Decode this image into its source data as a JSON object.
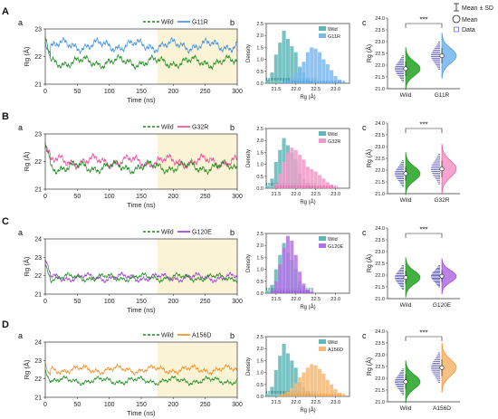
{
  "figure": {
    "global_legend": {
      "range_label": "Mean ± SD",
      "mean_label": "Mean",
      "data_label": "Data"
    },
    "colors": {
      "wild": "#1a8a1a",
      "teal": "#5fb8b8",
      "shade": "#fbf3d6",
      "axis": "#333333"
    },
    "rows": [
      {
        "letter": "A",
        "mutant": "G11R",
        "mutant_color": "#3e8ee0",
        "mutant_fill": "#7ab8f0",
        "ts_mean_wild": 21.8,
        "ts_mean_mut": 22.4,
        "ts_phase_shift": 0.2
      },
      {
        "letter": "B",
        "mutant": "G32R",
        "mutant_color": "#e8489a",
        "mutant_fill": "#f39ac8",
        "ts_mean_wild": 21.8,
        "ts_mean_mut": 22.0,
        "ts_phase_shift": 1.1
      },
      {
        "letter": "C",
        "mutant": "G120E",
        "mutant_color": "#9a3ad0",
        "mutant_fill": "#b474e6",
        "ts_mean_wild": 21.9,
        "ts_mean_mut": 21.9,
        "ts_phase_shift": 2.4
      },
      {
        "letter": "D",
        "mutant": "A156D",
        "mutant_color": "#f08a1c",
        "mutant_fill": "#f7b874",
        "ts_mean_wild": 21.9,
        "ts_mean_mut": 22.5,
        "ts_phase_shift": 3.3
      }
    ]
  },
  "chart_data": [
    {
      "type": "line",
      "panel": "a",
      "row": "A",
      "xlabel": "Time (ns)",
      "ylabel": "Rg (Å)",
      "xlim": [
        0,
        300
      ],
      "ylim": [
        21,
        23
      ],
      "x_ticks": [
        0,
        50,
        100,
        150,
        200,
        250,
        300
      ],
      "y_ticks": [
        21,
        22,
        23
      ],
      "shaded_region": [
        175,
        300
      ],
      "series": [
        {
          "name": "Wild",
          "style": "dashed-legend",
          "mean": 21.8
        },
        {
          "name": "G11R",
          "mean": 22.4
        }
      ]
    },
    {
      "type": "bar",
      "panel": "b",
      "row": "A",
      "xlabel": "Rg (Å)",
      "ylabel": "Density",
      "ylim": [
        0,
        2.5
      ],
      "x_ticks": [
        21.5,
        22.0,
        22.5,
        23.0
      ],
      "y_ticks": [
        0.0,
        0.5,
        1.0,
        1.5,
        2.0,
        2.5
      ],
      "categories": [
        21.3,
        21.4,
        21.5,
        21.6,
        21.7,
        21.8,
        21.9,
        22.0,
        22.1,
        22.2,
        22.3,
        22.4,
        22.5,
        22.6,
        22.7,
        22.8,
        22.9,
        23.0,
        23.1,
        23.2
      ],
      "series": [
        {
          "name": "Wild",
          "values": [
            0.15,
            0.45,
            1.2,
            1.7,
            2.2,
            1.85,
            1.55,
            1.3,
            0.65,
            0.45,
            0.2,
            0.1,
            0.05,
            0,
            0,
            0,
            0,
            0,
            0,
            0
          ]
        },
        {
          "name": "G11R",
          "values": [
            0,
            0,
            0,
            0,
            0.05,
            0.1,
            0.25,
            0.45,
            0.7,
            0.9,
            1.3,
            1.5,
            1.45,
            1.3,
            1.0,
            0.8,
            0.55,
            0.3,
            0.15,
            0.05
          ]
        }
      ]
    },
    {
      "type": "scatter",
      "panel": "c",
      "row": "A",
      "ylabel": "Rg (Å)",
      "ylim": [
        21.0,
        24.0
      ],
      "y_ticks": [
        21.0,
        21.5,
        22.0,
        22.5,
        23.0,
        23.5,
        24.0
      ],
      "categories": [
        "Wild",
        "G11R"
      ],
      "means": [
        21.85,
        22.4
      ],
      "sd": [
        0.3,
        0.32
      ],
      "significance": "***"
    },
    {
      "type": "line",
      "panel": "a",
      "row": "B",
      "xlabel": "Time (ns)",
      "ylabel": "Rg (Å)",
      "xlim": [
        0,
        300
      ],
      "ylim": [
        21,
        23
      ],
      "x_ticks": [
        0,
        50,
        100,
        150,
        200,
        250,
        300
      ],
      "y_ticks": [
        21,
        22,
        23
      ],
      "shaded_region": [
        175,
        300
      ],
      "series": [
        {
          "name": "Wild",
          "mean": 21.8
        },
        {
          "name": "G32R",
          "mean": 22.0
        }
      ]
    },
    {
      "type": "bar",
      "panel": "b",
      "row": "B",
      "xlabel": "Rg (Å)",
      "ylabel": "Density",
      "ylim": [
        0,
        2.5
      ],
      "x_ticks": [
        21.5,
        22.0,
        22.5,
        23.0
      ],
      "y_ticks": [
        0.0,
        0.5,
        1.0,
        1.5,
        2.0,
        2.5
      ],
      "categories": [
        21.3,
        21.4,
        21.5,
        21.6,
        21.7,
        21.8,
        21.9,
        22.0,
        22.1,
        22.2,
        22.3,
        22.4,
        22.5,
        22.6,
        22.7,
        22.8,
        22.9,
        23.0,
        23.1,
        23.2
      ],
      "series": [
        {
          "name": "Wild",
          "values": [
            0.1,
            0.4,
            1.1,
            1.6,
            2.1,
            1.8,
            1.5,
            1.2,
            0.6,
            0.4,
            0.2,
            0.1,
            0.05,
            0,
            0,
            0,
            0,
            0,
            0,
            0
          ]
        },
        {
          "name": "G32R",
          "values": [
            0,
            0,
            0.2,
            0.6,
            1.1,
            1.5,
            1.7,
            1.6,
            1.4,
            1.2,
            0.9,
            0.8,
            0.7,
            0.55,
            0.4,
            0.25,
            0.15,
            0.05,
            0,
            0
          ]
        }
      ]
    },
    {
      "type": "scatter",
      "panel": "c",
      "row": "B",
      "ylabel": "Rg (Å)",
      "ylim": [
        21.0,
        24.0
      ],
      "y_ticks": [
        21.0,
        21.5,
        22.0,
        22.5,
        23.0,
        23.5,
        24.0
      ],
      "categories": [
        "Wild",
        "G32R"
      ],
      "means": [
        21.85,
        22.05
      ],
      "sd": [
        0.3,
        0.35
      ],
      "significance": "***"
    },
    {
      "type": "line",
      "panel": "a",
      "row": "C",
      "xlabel": "Time (ns)",
      "ylabel": "Rg (Å)",
      "xlim": [
        0,
        300
      ],
      "ylim": [
        21,
        24
      ],
      "x_ticks": [
        0,
        50,
        100,
        150,
        200,
        250,
        300
      ],
      "y_ticks": [
        21,
        22,
        23,
        24
      ],
      "shaded_region": [
        175,
        300
      ],
      "series": [
        {
          "name": "Wild",
          "mean": 21.9
        },
        {
          "name": "G120E",
          "mean": 21.9
        }
      ]
    },
    {
      "type": "bar",
      "panel": "b",
      "row": "C",
      "xlabel": "Rg (Å)",
      "ylabel": "Density",
      "ylim": [
        0,
        2.5
      ],
      "x_ticks": [
        21.5,
        22.0,
        22.5,
        23.0
      ],
      "y_ticks": [
        0.0,
        0.5,
        1.0,
        1.5,
        2.0,
        2.5
      ],
      "categories": [
        21.3,
        21.4,
        21.5,
        21.6,
        21.7,
        21.8,
        21.9,
        22.0,
        22.1,
        22.2,
        22.3,
        22.4,
        22.5,
        22.6,
        22.7,
        22.8,
        22.9,
        23.0,
        23.1,
        23.2
      ],
      "series": [
        {
          "name": "Wild",
          "values": [
            0.1,
            0.35,
            1.0,
            1.6,
            2.1,
            1.7,
            1.4,
            1.0,
            0.5,
            0.3,
            0.15,
            0.05,
            0,
            0,
            0,
            0,
            0,
            0,
            0,
            0
          ]
        },
        {
          "name": "G120E",
          "values": [
            0,
            0.1,
            0.5,
            1.2,
            1.9,
            2.4,
            2.2,
            1.6,
            0.9,
            0.4,
            0.15,
            0.05,
            0,
            0,
            0,
            0,
            0,
            0,
            0,
            0
          ]
        }
      ]
    },
    {
      "type": "scatter",
      "panel": "c",
      "row": "C",
      "ylabel": "Rg (Å)",
      "ylim": [
        21.0,
        24.0
      ],
      "y_ticks": [
        21.0,
        21.5,
        22.0,
        22.5,
        23.0,
        23.5,
        24.0
      ],
      "categories": [
        "Wild",
        "G120E"
      ],
      "means": [
        21.9,
        21.95
      ],
      "sd": [
        0.28,
        0.25
      ],
      "significance": "***"
    },
    {
      "type": "line",
      "panel": "a",
      "row": "D",
      "xlabel": "Time (ns)",
      "ylabel": "Rg (Å)",
      "xlim": [
        0,
        300
      ],
      "ylim": [
        21,
        24
      ],
      "x_ticks": [
        0,
        50,
        100,
        150,
        200,
        250,
        300
      ],
      "y_ticks": [
        21,
        22,
        23,
        24
      ],
      "shaded_region": [
        175,
        300
      ],
      "series": [
        {
          "name": "Wild",
          "mean": 21.9
        },
        {
          "name": "A156D",
          "mean": 22.5
        }
      ]
    },
    {
      "type": "bar",
      "panel": "b",
      "row": "D",
      "xlabel": "Rg (Å)",
      "ylabel": "Density",
      "ylim": [
        0,
        2.5
      ],
      "x_ticks": [
        21.5,
        22.0,
        22.5,
        23.0
      ],
      "y_ticks": [
        0.0,
        0.5,
        1.0,
        1.5,
        2.0,
        2.5
      ],
      "categories": [
        21.3,
        21.4,
        21.5,
        21.6,
        21.7,
        21.8,
        21.9,
        22.0,
        22.1,
        22.2,
        22.3,
        22.4,
        22.5,
        22.6,
        22.7,
        22.8,
        22.9,
        23.0,
        23.1,
        23.2
      ],
      "series": [
        {
          "name": "Wild",
          "values": [
            0.1,
            0.4,
            1.1,
            1.7,
            2.2,
            1.8,
            1.5,
            1.2,
            0.6,
            0.4,
            0.2,
            0.1,
            0.05,
            0,
            0,
            0,
            0,
            0,
            0,
            0
          ]
        },
        {
          "name": "A156D",
          "values": [
            0,
            0,
            0,
            0.05,
            0.1,
            0.2,
            0.35,
            0.55,
            0.8,
            1.0,
            1.2,
            1.35,
            1.3,
            1.15,
            0.95,
            0.7,
            0.5,
            0.3,
            0.15,
            0.05
          ]
        }
      ]
    },
    {
      "type": "scatter",
      "panel": "c",
      "row": "D",
      "ylabel": "Rg (Å)",
      "ylim": [
        21.0,
        24.0
      ],
      "y_ticks": [
        21.0,
        21.5,
        22.0,
        22.5,
        23.0,
        23.5,
        24.0
      ],
      "categories": [
        "Wild",
        "A156D"
      ],
      "means": [
        21.85,
        22.45
      ],
      "sd": [
        0.3,
        0.35
      ],
      "significance": "***"
    }
  ]
}
